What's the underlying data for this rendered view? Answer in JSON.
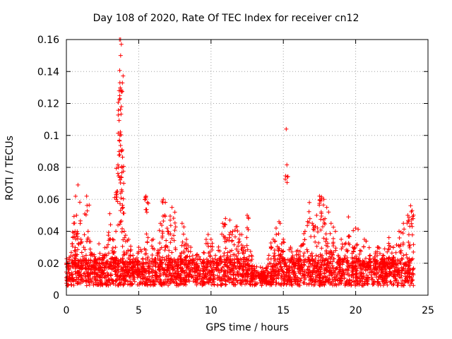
{
  "chart_data": {
    "type": "scatter",
    "title": "Day 108 of 2020, Rate Of TEC Index for receiver cn12",
    "xlabel": "GPS time / hours",
    "ylabel": "ROTI / TECUs",
    "xlim": [
      0,
      25
    ],
    "ylim": [
      0,
      0.16
    ],
    "xticks": [
      "0",
      "5",
      "10",
      "15",
      "20",
      "25"
    ],
    "yticks": [
      "0",
      "0.02",
      "0.04",
      "0.06",
      "0.08",
      "0.1",
      "0.12",
      "0.14",
      "0.16"
    ],
    "grid": true,
    "marker": "+",
    "marker_color": "#ff0000",
    "series": [
      {
        "x": [
          0.0,
          0.5,
          0.6,
          0.7,
          0.8,
          1.0,
          1.2,
          1.4,
          1.5,
          1.8,
          2.0,
          2.3,
          2.5,
          2.8,
          3.0,
          3.2,
          3.4,
          3.5,
          3.6,
          3.7,
          3.7,
          3.7,
          3.75,
          3.75,
          3.8,
          3.8,
          3.8,
          3.85,
          3.9,
          4.0,
          4.3,
          4.6,
          5.0,
          5.5,
          5.6,
          6.0,
          6.5,
          6.7,
          6.8,
          7.0,
          7.3,
          7.5,
          8.0,
          8.3,
          8.6,
          9.0,
          9.5,
          9.8,
          10.0,
          10.5,
          10.8,
          11.0,
          11.3,
          11.5,
          11.8,
          12.0,
          12.3,
          12.5,
          12.8,
          13.0,
          13.5,
          14.0,
          14.3,
          14.5,
          14.7,
          15.0,
          15.2,
          15.5,
          16.0,
          16.5,
          16.8,
          17.0,
          17.3,
          17.5,
          17.6,
          17.8,
          18.0,
          18.3,
          18.6,
          19.0,
          19.5,
          19.8,
          20.0,
          20.3,
          20.6,
          21.0,
          21.5,
          22.0,
          22.3,
          22.6,
          23.0,
          23.3,
          23.6,
          23.8,
          23.9
        ],
        "y": [
          0.02,
          0.045,
          0.04,
          0.05,
          0.069,
          0.035,
          0.03,
          0.062,
          0.04,
          0.025,
          0.022,
          0.02,
          0.025,
          0.03,
          0.051,
          0.035,
          0.03,
          0.065,
          0.08,
          0.1,
          0.123,
          0.133,
          0.15,
          0.16,
          0.157,
          0.118,
          0.09,
          0.065,
          0.055,
          0.04,
          0.035,
          0.025,
          0.03,
          0.062,
          0.058,
          0.035,
          0.045,
          0.06,
          0.05,
          0.04,
          0.055,
          0.052,
          0.045,
          0.035,
          0.03,
          0.025,
          0.02,
          0.038,
          0.035,
          0.028,
          0.045,
          0.048,
          0.047,
          0.04,
          0.043,
          0.038,
          0.03,
          0.05,
          0.025,
          0.018,
          0.015,
          0.025,
          0.035,
          0.042,
          0.046,
          0.035,
          0.104,
          0.03,
          0.028,
          0.04,
          0.058,
          0.045,
          0.05,
          0.062,
          0.059,
          0.06,
          0.055,
          0.045,
          0.04,
          0.035,
          0.049,
          0.03,
          0.042,
          0.028,
          0.035,
          0.025,
          0.03,
          0.02,
          0.036,
          0.03,
          0.04,
          0.045,
          0.05,
          0.056,
          0.053
        ],
        "note_background": "dense band of points between 0.005 and 0.025 across 0-24 h"
      }
    ]
  }
}
